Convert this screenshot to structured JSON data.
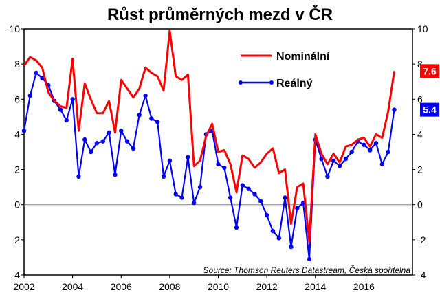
{
  "chart_data": {
    "type": "line",
    "title": "Růst průměrných mezd v ČR",
    "source": "Source: Thomson Reuters Datastream, Česká spořitelna",
    "xlim": [
      2002,
      2018
    ],
    "ylim": [
      -4,
      10
    ],
    "x_ticks": [
      "2002",
      "2004",
      "2006",
      "2008",
      "2010",
      "2012",
      "2014",
      "2016"
    ],
    "y_ticks_left": [
      "-4",
      "-2",
      "0",
      "2",
      "4",
      "6",
      "8",
      "10"
    ],
    "y_ticks_right": [
      "-4",
      "-2",
      "0",
      "2",
      "4",
      "6",
      "8",
      "10"
    ],
    "grid": false,
    "legend_position": "top-right",
    "x": [
      2002.0,
      2002.25,
      2002.5,
      2002.75,
      2003.0,
      2003.25,
      2003.5,
      2003.75,
      2004.0,
      2004.25,
      2004.5,
      2004.75,
      2005.0,
      2005.25,
      2005.5,
      2005.75,
      2006.0,
      2006.25,
      2006.5,
      2006.75,
      2007.0,
      2007.25,
      2007.5,
      2007.75,
      2008.0,
      2008.25,
      2008.5,
      2008.75,
      2009.0,
      2009.25,
      2009.5,
      2009.75,
      2010.0,
      2010.25,
      2010.5,
      2010.75,
      2011.0,
      2011.25,
      2011.5,
      2011.75,
      2012.0,
      2012.25,
      2012.5,
      2012.75,
      2013.0,
      2013.25,
      2013.5,
      2013.75,
      2014.0,
      2014.25,
      2014.5,
      2014.75,
      2015.0,
      2015.25,
      2015.5,
      2015.75,
      2016.0,
      2016.25,
      2016.5,
      2016.75,
      2017.0,
      2017.25
    ],
    "series": [
      {
        "name": "Nominální",
        "color": "#ff0000",
        "markers": false,
        "end_label": "7.6",
        "values": [
          7.9,
          8.4,
          8.2,
          7.8,
          6.4,
          5.9,
          5.6,
          5.5,
          8.3,
          4.2,
          6.9,
          6.0,
          5.2,
          5.2,
          5.9,
          4.1,
          7.1,
          6.6,
          6.1,
          6.6,
          7.8,
          7.5,
          7.3,
          6.5,
          9.9,
          7.3,
          7.1,
          7.4,
          2.2,
          2.5,
          3.9,
          4.6,
          3.0,
          3.1,
          2.3,
          0.7,
          2.8,
          2.6,
          2.1,
          2.4,
          2.9,
          3.2,
          1.8,
          2.0,
          -1.1,
          1.0,
          1.2,
          -2.1,
          4.0,
          2.9,
          2.3,
          2.9,
          2.4,
          3.3,
          3.4,
          3.7,
          3.8,
          3.3,
          4.0,
          3.8,
          5.3,
          7.6
        ]
      },
      {
        "name": "Reálný",
        "color": "#0000ff",
        "markers": true,
        "end_label": "5.4",
        "values": [
          4.2,
          6.2,
          7.5,
          7.2,
          6.8,
          5.9,
          5.4,
          4.8,
          6.0,
          1.6,
          3.7,
          3.0,
          3.5,
          3.6,
          4.1,
          1.7,
          4.2,
          3.6,
          3.2,
          5.1,
          6.2,
          4.9,
          4.7,
          1.6,
          2.5,
          0.6,
          0.4,
          2.7,
          0.1,
          1.0,
          4.0,
          4.2,
          2.3,
          2.1,
          0.4,
          -1.3,
          1.1,
          0.9,
          0.6,
          0.2,
          -0.6,
          -1.5,
          -1.9,
          0.4,
          -2.4,
          -0.2,
          0.1,
          -3.1,
          3.7,
          2.6,
          1.6,
          2.5,
          2.2,
          2.6,
          3.0,
          3.6,
          3.4,
          3.1,
          3.5,
          2.3,
          3.0,
          5.4
        ]
      }
    ]
  }
}
